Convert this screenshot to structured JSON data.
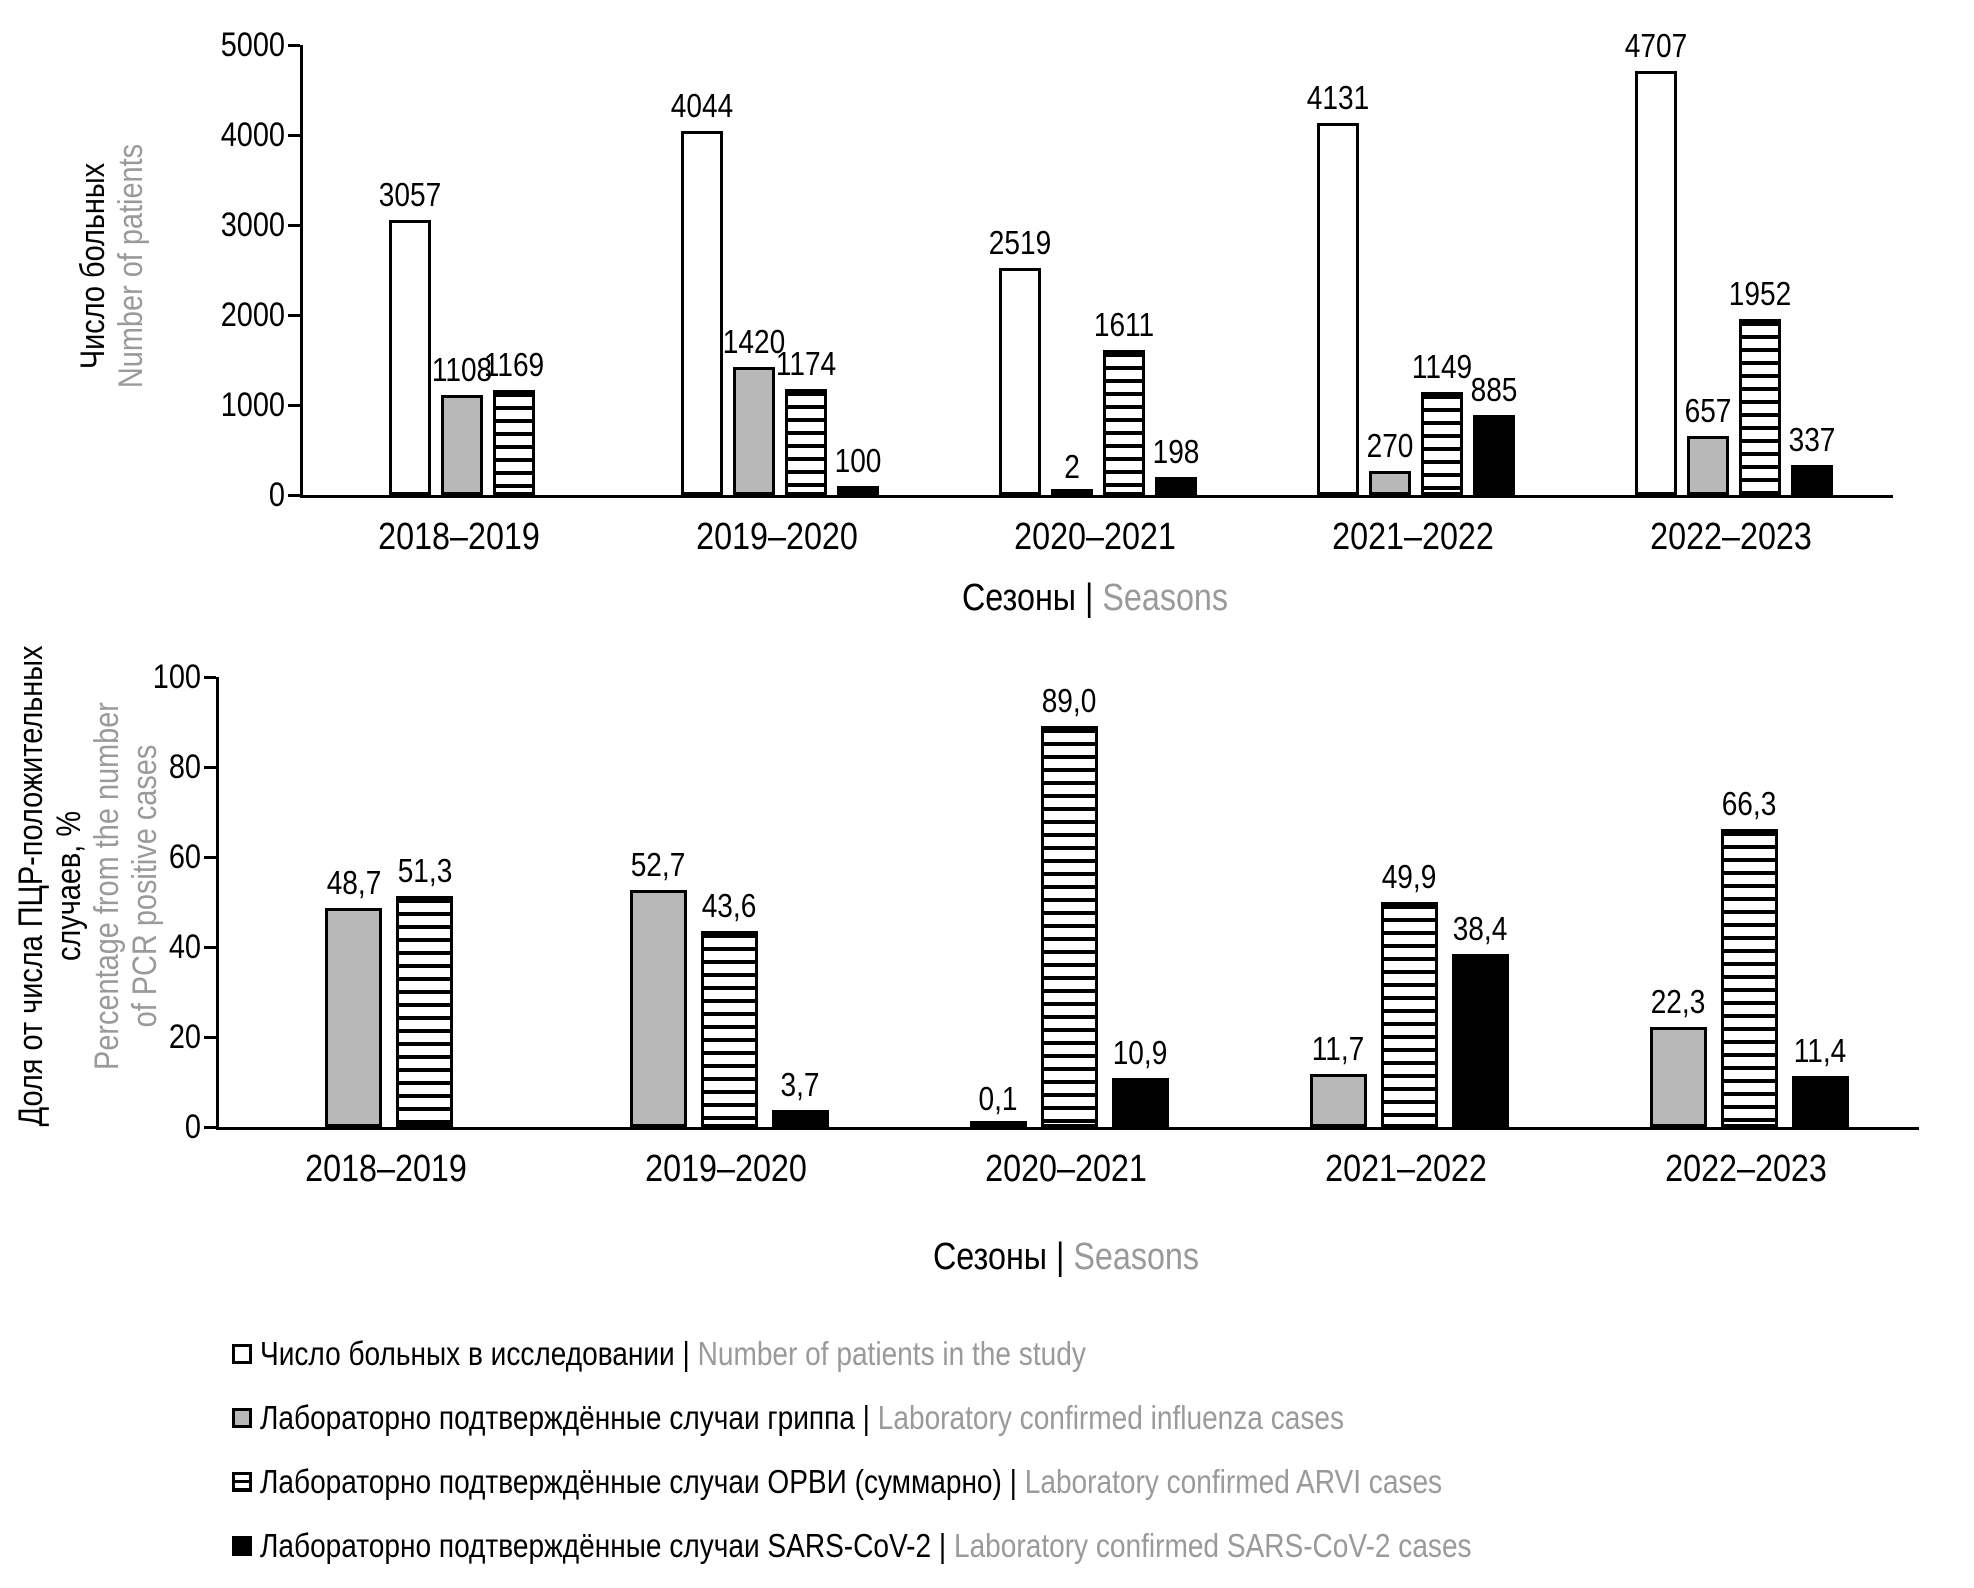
{
  "colors": {
    "bar_gray": "#b8b8b8",
    "text_gray": "#9a9a9a",
    "black": "#000000",
    "white": "#ffffff"
  },
  "chart_data": [
    {
      "type": "bar",
      "ylabel_ru_lines": [
        "Число больных"
      ],
      "ylabel_en_lines": [
        "Number of patients"
      ],
      "xlabel_ru": "Сезоны",
      "xlabel_sep": " | ",
      "xlabel_en": "Seasons",
      "ylim": [
        0,
        5000
      ],
      "ytick_step": 1000,
      "grid": false,
      "categories": [
        "2018–2019",
        "2019–2020",
        "2020–2021",
        "2021–2022",
        "2022–2023"
      ],
      "series": [
        {
          "name": "Число больных в исследовании | Number of patients in the study",
          "style": "white",
          "values": [
            3057,
            4044,
            2519,
            4131,
            4707
          ],
          "labels": [
            "3057",
            "4044",
            "2519",
            "4131",
            "4707"
          ]
        },
        {
          "name": "Лабораторно подтверждённые случаи гриппа | Laboratory confirmed influenza cases",
          "style": "gray",
          "values": [
            1108,
            1420,
            2,
            270,
            657
          ],
          "labels": [
            "1108",
            "1420",
            "2",
            "270",
            "657"
          ]
        },
        {
          "name": "Лабораторно подтверждённые случаи ОРВИ (суммарно) | Laboratory confirmed ARVI cases",
          "style": "striped",
          "values": [
            1169,
            1174,
            1611,
            1149,
            1952
          ],
          "labels": [
            "1169",
            "1174",
            "1611",
            "1149",
            "1952"
          ]
        },
        {
          "name": "Лабораторно подтверждённые случаи SARS-CoV-2 | Laboratory confirmed SARS-CoV-2 cases",
          "style": "black",
          "values": [
            null,
            100,
            198,
            885,
            337
          ],
          "labels": [
            "",
            "100",
            "198",
            "885",
            "337"
          ]
        }
      ]
    },
    {
      "type": "bar",
      "ylabel_ru_lines": [
        "Доля от числа ПЦР-положительных",
        "случаев, %"
      ],
      "ylabel_en_lines": [
        "Percentage from the number",
        "of PCR positive cases"
      ],
      "xlabel_ru": "Сезоны",
      "xlabel_sep": " | ",
      "xlabel_en": "Seasons",
      "ylim": [
        0,
        100
      ],
      "ytick_step": 20,
      "grid": false,
      "categories": [
        "2018–2019",
        "2019–2020",
        "2020–2021",
        "2021–2022",
        "2022–2023"
      ],
      "series": [
        {
          "name": "Лабораторно подтверждённые случаи гриппа | Laboratory confirmed influenza cases",
          "style": "gray",
          "values": [
            48.7,
            52.7,
            0.1,
            11.7,
            22.3
          ],
          "labels": [
            "48,7",
            "52,7",
            "0,1",
            "11,7",
            "22,3"
          ]
        },
        {
          "name": "Лабораторно подтверждённые случаи ОРВИ (суммарно) | Laboratory confirmed ARVI cases",
          "style": "striped",
          "values": [
            51.3,
            43.6,
            89.0,
            49.9,
            66.3
          ],
          "labels": [
            "51,3",
            "43,6",
            "89,0",
            "49,9",
            "66,3"
          ]
        },
        {
          "name": "Лабораторно подтверждённые случаи SARS-CoV-2 | Laboratory confirmed SARS-CoV-2 cases",
          "style": "black",
          "values": [
            null,
            3.7,
            10.9,
            38.4,
            11.4
          ],
          "labels": [
            "",
            "3,7",
            "10,9",
            "38,4",
            "11,4"
          ]
        }
      ]
    }
  ],
  "legend": [
    {
      "style": "white",
      "ru": "Число больных в исследовании",
      "sep": " | ",
      "en": "Number of patients in the study"
    },
    {
      "style": "gray",
      "ru": "Лабораторно подтверждённые случаи гриппа",
      "sep": " | ",
      "en": "Laboratory confirmed influenza cases"
    },
    {
      "style": "striped",
      "ru": "Лабораторно подтверждённые случаи ОРВИ (суммарно)",
      "sep": " | ",
      "en": "Laboratory confirmed ARVI cases"
    },
    {
      "style": "black",
      "ru": "Лабораторно подтверждённые случаи  SARS-CoV-2",
      "sep": " | ",
      "en": "Laboratory confirmed  SARS-CoV-2 cases"
    }
  ]
}
